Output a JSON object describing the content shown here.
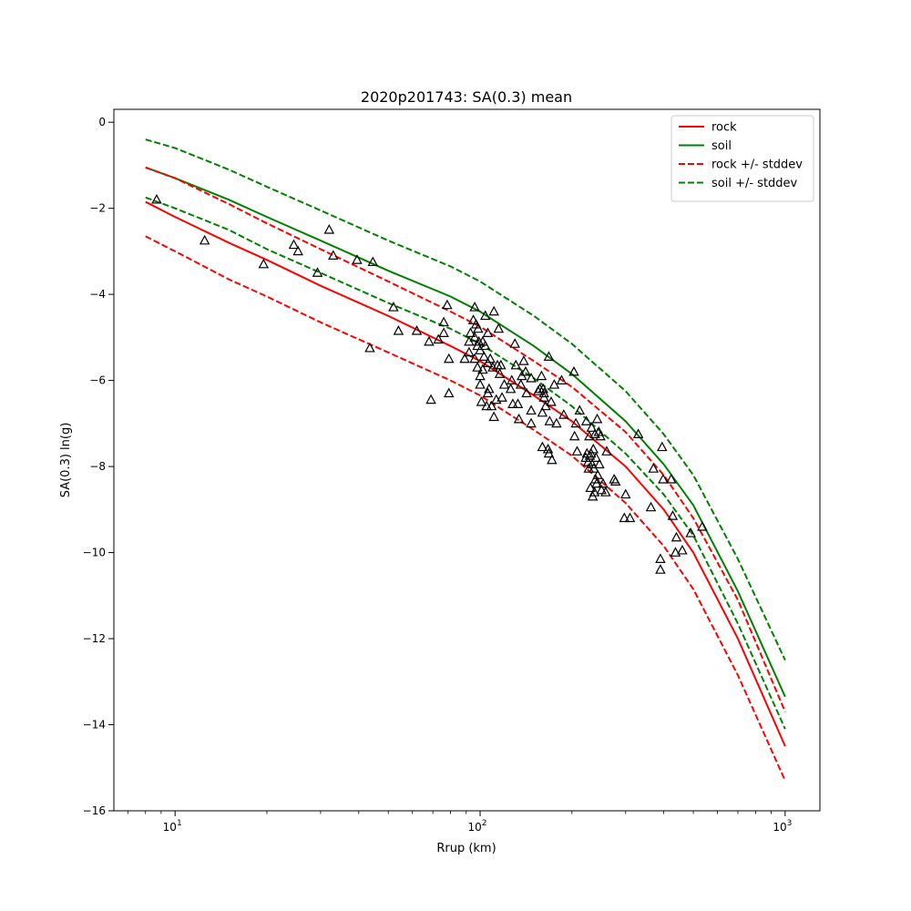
{
  "chart_data": {
    "type": "line",
    "title": "2020p201743: SA(0.3) mean",
    "xlabel": "Rrup (km)",
    "ylabel": "SA(0.3) ln(g)",
    "xscale": "log",
    "xlim": [
      6.3,
      1300
    ],
    "ylim": [
      -16,
      0.3
    ],
    "xticks": [
      {
        "value": 10,
        "base": "10",
        "exp": "1"
      },
      {
        "value": 100,
        "base": "10",
        "exp": "2"
      },
      {
        "value": 1000,
        "base": "10",
        "exp": "3"
      }
    ],
    "yticks": [
      {
        "value": 0,
        "label": "0"
      },
      {
        "value": -2,
        "label": "−2"
      },
      {
        "value": -4,
        "label": "−4"
      },
      {
        "value": -6,
        "label": "−6"
      },
      {
        "value": -8,
        "label": "−8"
      },
      {
        "value": -10,
        "label": "−10"
      },
      {
        "value": -12,
        "label": "−12"
      },
      {
        "value": -14,
        "label": "−14"
      },
      {
        "value": -16,
        "label": "−16"
      }
    ],
    "grid": false,
    "legend_position": "top-right",
    "x": [
      8,
      10,
      15,
      20,
      30,
      50,
      80,
      100,
      150,
      200,
      300,
      400,
      500,
      700,
      1000
    ],
    "series": [
      {
        "name": "rock",
        "color": "#ff0000",
        "dash": "solid",
        "values": [
          -1.85,
          -2.2,
          -2.8,
          -3.2,
          -3.8,
          -4.5,
          -5.2,
          -5.55,
          -6.35,
          -6.95,
          -8.0,
          -9.0,
          -10.0,
          -12.0,
          -14.5
        ]
      },
      {
        "name": "soil",
        "color": "#008000",
        "dash": "solid",
        "values": [
          -1.05,
          -1.3,
          -1.8,
          -2.2,
          -2.75,
          -3.45,
          -4.05,
          -4.4,
          -5.2,
          -5.85,
          -6.95,
          -7.95,
          -8.9,
          -10.9,
          -13.35
        ]
      },
      {
        "name": "rock +/- stddev",
        "color": "#ff0000",
        "dash": "dashed",
        "legend": true,
        "values": [
          -1.05,
          -1.3,
          -1.9,
          -2.35,
          -2.95,
          -3.7,
          -4.4,
          -4.75,
          -5.55,
          -6.15,
          -7.2,
          -8.2,
          -9.2,
          -11.1,
          -13.7
        ]
      },
      {
        "name": "rock +/- stddev",
        "color": "#ff0000",
        "dash": "dashed",
        "legend": false,
        "values": [
          -2.65,
          -3.0,
          -3.65,
          -4.05,
          -4.65,
          -5.35,
          -6.0,
          -6.35,
          -7.15,
          -7.75,
          -8.85,
          -9.85,
          -10.85,
          -12.85,
          -15.3
        ]
      },
      {
        "name": "soil +/- stddev",
        "color": "#008000",
        "dash": "dashed",
        "legend": true,
        "values": [
          -0.4,
          -0.6,
          -1.1,
          -1.5,
          -2.05,
          -2.75,
          -3.35,
          -3.7,
          -4.5,
          -5.15,
          -6.25,
          -7.25,
          -8.2,
          -10.15,
          -12.5
        ]
      },
      {
        "name": "soil +/- stddev",
        "color": "#008000",
        "dash": "dashed",
        "legend": false,
        "values": [
          -1.75,
          -2.0,
          -2.5,
          -2.95,
          -3.5,
          -4.2,
          -4.8,
          -5.15,
          -5.95,
          -6.6,
          -7.7,
          -8.65,
          -9.6,
          -11.65,
          -14.1
        ]
      }
    ],
    "observations": {
      "marker": "triangle-open",
      "color": "#000000",
      "points": [
        [
          8.7,
          -1.8
        ],
        [
          12.5,
          -2.75
        ],
        [
          19.5,
          -3.3
        ],
        [
          24.5,
          -2.85
        ],
        [
          25.3,
          -3.0
        ],
        [
          29.3,
          -3.5
        ],
        [
          32,
          -2.5
        ],
        [
          33,
          -3.1
        ],
        [
          39.5,
          -3.2
        ],
        [
          43.5,
          -5.25
        ],
        [
          44.5,
          -3.25
        ],
        [
          52,
          -4.3
        ],
        [
          54,
          -4.85
        ],
        [
          62,
          -4.85
        ],
        [
          68,
          -5.1
        ],
        [
          69,
          -6.45
        ],
        [
          73,
          -5.05
        ],
        [
          76,
          -4.65
        ],
        [
          76,
          -4.9
        ],
        [
          78,
          -4.25
        ],
        [
          79,
          -6.3
        ],
        [
          79,
          -5.5
        ],
        [
          89,
          -5.5
        ],
        [
          92,
          -5.1
        ],
        [
          92,
          -5.35
        ],
        [
          93,
          -4.9
        ],
        [
          95,
          -4.6
        ],
        [
          96,
          -5.0
        ],
        [
          96,
          -5.5
        ],
        [
          96,
          -4.3
        ],
        [
          97,
          -4.7
        ],
        [
          98,
          -5.2
        ],
        [
          98,
          -5.7
        ],
        [
          98.5,
          -4.8
        ],
        [
          99,
          -5.1
        ],
        [
          100,
          -5.3
        ],
        [
          100,
          -5.9
        ],
        [
          100,
          -6.1
        ],
        [
          101,
          -6.5
        ],
        [
          102,
          -5.1
        ],
        [
          102,
          -5.75
        ],
        [
          103,
          -5.45
        ],
        [
          104,
          -5.2
        ],
        [
          104,
          -4.5
        ],
        [
          105,
          -6.6
        ],
        [
          106,
          -4.9
        ],
        [
          106,
          -5.6
        ],
        [
          106,
          -6.3
        ],
        [
          107,
          -6.2
        ],
        [
          108,
          -5.5
        ],
        [
          109,
          -6.6
        ],
        [
          110,
          -5.7
        ],
        [
          111,
          -6.85
        ],
        [
          111,
          -4.4
        ],
        [
          113,
          -6.45
        ],
        [
          114,
          -5.65
        ],
        [
          115,
          -4.8
        ],
        [
          116,
          -5.85
        ],
        [
          117,
          -5.65
        ],
        [
          118,
          -6.4
        ],
        [
          120,
          -6.1
        ],
        [
          126,
          -6.2
        ],
        [
          127,
          -6.0
        ],
        [
          128,
          -6.55
        ],
        [
          130,
          -5.15
        ],
        [
          131,
          -5.65
        ],
        [
          133,
          -6.55
        ],
        [
          134,
          -6.9
        ],
        [
          136,
          -6.1
        ],
        [
          137,
          -5.9
        ],
        [
          139,
          -5.55
        ],
        [
          141,
          -5.8
        ],
        [
          142,
          -6.3
        ],
        [
          147,
          -6.7
        ],
        [
          147,
          -7.0
        ],
        [
          147,
          -5.95
        ],
        [
          155,
          -6.25
        ],
        [
          157,
          -6.2
        ],
        [
          159,
          -5.9
        ],
        [
          160,
          -7.55
        ],
        [
          160,
          -6.75
        ],
        [
          161,
          -6.2
        ],
        [
          162,
          -6.4
        ],
        [
          162,
          -6.3
        ],
        [
          164,
          -6.6
        ],
        [
          167,
          -7.6
        ],
        [
          168,
          -7.7
        ],
        [
          168,
          -5.45
        ],
        [
          169,
          -6.95
        ],
        [
          171,
          -6.5
        ],
        [
          172,
          -7.85
        ],
        [
          175,
          -6.1
        ],
        [
          178,
          -7.0
        ],
        [
          185,
          -6.0
        ],
        [
          188,
          -6.8
        ],
        [
          203,
          -5.8
        ],
        [
          204,
          -7.3
        ],
        [
          206,
          -7.0
        ],
        [
          208,
          -7.65
        ],
        [
          212,
          -6.7
        ],
        [
          222,
          -7.8
        ],
        [
          223,
          -6.95
        ],
        [
          224,
          -7.7
        ],
        [
          226,
          -7.9
        ],
        [
          227,
          -8.05
        ],
        [
          228,
          -7.3
        ],
        [
          229,
          -7.75
        ],
        [
          230,
          -8.5
        ],
        [
          231,
          -7.7
        ],
        [
          232,
          -7.1
        ],
        [
          233,
          -7.95
        ],
        [
          234,
          -8.7
        ],
        [
          235,
          -7.6
        ],
        [
          236,
          -8.05
        ],
        [
          237,
          -8.6
        ],
        [
          238,
          -7.25
        ],
        [
          239,
          -8.3
        ],
        [
          240,
          -7.8
        ],
        [
          241,
          -8.4
        ],
        [
          242,
          -6.9
        ],
        [
          243,
          -8.2
        ],
        [
          245,
          -7.2
        ],
        [
          246,
          -7.95
        ],
        [
          248,
          -7.3
        ],
        [
          250,
          -8.55
        ],
        [
          253,
          -8.4
        ],
        [
          258,
          -8.6
        ],
        [
          260,
          -7.65
        ],
        [
          275,
          -8.3
        ],
        [
          278,
          -8.35
        ],
        [
          297,
          -9.2
        ],
        [
          300,
          -8.65
        ],
        [
          310,
          -9.2
        ],
        [
          330,
          -7.25
        ],
        [
          363,
          -8.95
        ],
        [
          370,
          -8.05
        ],
        [
          390,
          -10.15
        ],
        [
          390,
          -10.4
        ],
        [
          395,
          -7.55
        ],
        [
          398,
          -8.3
        ],
        [
          423,
          -8.3
        ],
        [
          428,
          -9.15
        ],
        [
          437,
          -10.0
        ],
        [
          440,
          -9.65
        ],
        [
          460,
          -9.95
        ],
        [
          490,
          -9.55
        ],
        [
          535,
          -9.4
        ]
      ]
    }
  }
}
